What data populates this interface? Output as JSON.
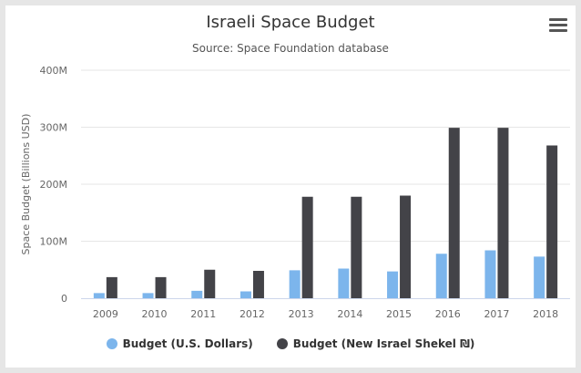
{
  "chart_data": {
    "type": "bar",
    "title": "Israeli Space Budget",
    "subtitle": "Source: Space Foundation database",
    "ylabel": "Space Budget (Billions USD)",
    "xlabel": "",
    "categories": [
      "2009",
      "2010",
      "2011",
      "2012",
      "2013",
      "2014",
      "2015",
      "2016",
      "2017",
      "2018"
    ],
    "ylim": [
      0,
      400000000
    ],
    "yticks": [
      {
        "value": 0,
        "label": "0"
      },
      {
        "value": 100000000,
        "label": "100M"
      },
      {
        "value": 200000000,
        "label": "200M"
      },
      {
        "value": 300000000,
        "label": "300M"
      },
      {
        "value": 400000000,
        "label": "400M"
      }
    ],
    "grid": true,
    "legend_position": "bottom",
    "series": [
      {
        "name": "Budget (U.S. Dollars)",
        "color": "#7cb5ec",
        "values": [
          9000000,
          9000000,
          13000000,
          12000000,
          49000000,
          52000000,
          47000000,
          78000000,
          84000000,
          73000000
        ]
      },
      {
        "name": "Budget (New Israel Shekel ₪)",
        "color": "#434348",
        "values": [
          37000000,
          37000000,
          50000000,
          48000000,
          178000000,
          178000000,
          180000000,
          299000000,
          299000000,
          268000000
        ]
      }
    ]
  },
  "menu_icon": "hamburger-menu-icon"
}
